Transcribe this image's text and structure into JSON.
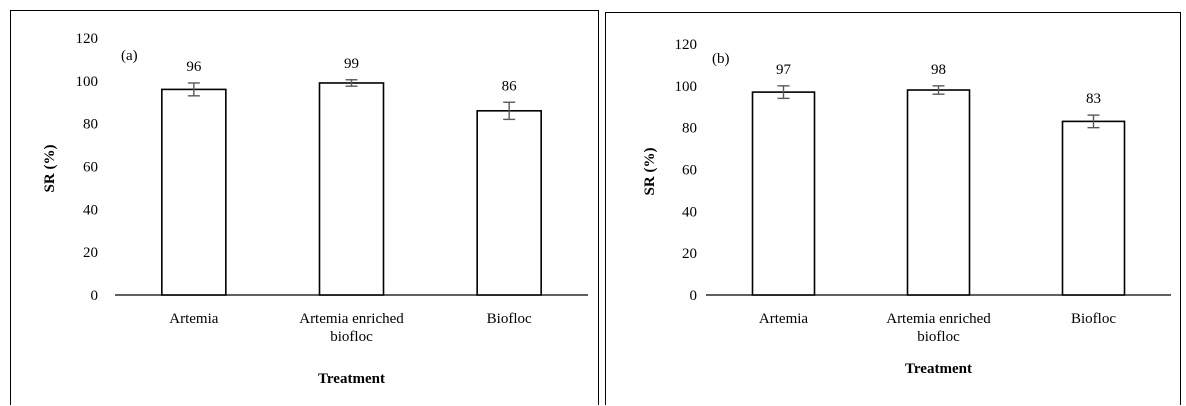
{
  "chart_data": [
    {
      "type": "bar",
      "panel_label": "(a)",
      "categories": [
        "Artemia",
        "Artemia enriched biofloc",
        "Biofloc"
      ],
      "category_lines": [
        [
          "Artemia"
        ],
        [
          "Artemia enriched",
          "biofloc"
        ],
        [
          "Biofloc"
        ]
      ],
      "values": [
        96,
        99,
        86
      ],
      "error": [
        3,
        1.5,
        4
      ],
      "data_labels": [
        "96",
        "99",
        "86"
      ],
      "xlabel": "Treatment",
      "ylabel": "SR (%)",
      "ylim": [
        0,
        120
      ],
      "yticks": [
        "0",
        "20",
        "40",
        "60",
        "80",
        "100",
        "120"
      ],
      "grid": false,
      "bar_fill": "#ffffff",
      "bar_stroke": "#000000",
      "error_color": "#595959"
    },
    {
      "type": "bar",
      "panel_label": "(b)",
      "categories": [
        "Artemia",
        "Artemia enriched biofloc",
        "Biofloc"
      ],
      "category_lines": [
        [
          "Artemia"
        ],
        [
          "Artemia enriched",
          "biofloc"
        ],
        [
          "Biofloc"
        ]
      ],
      "values": [
        97,
        98,
        83
      ],
      "error": [
        3,
        2,
        3
      ],
      "data_labels": [
        "97",
        "98",
        "83"
      ],
      "xlabel": "Treatment",
      "ylabel": "SR (%)",
      "ylim": [
        0,
        120
      ],
      "yticks": [
        "0",
        "20",
        "40",
        "60",
        "80",
        "100",
        "120"
      ],
      "grid": false,
      "bar_fill": "#ffffff",
      "bar_stroke": "#000000",
      "error_color": "#595959"
    }
  ]
}
